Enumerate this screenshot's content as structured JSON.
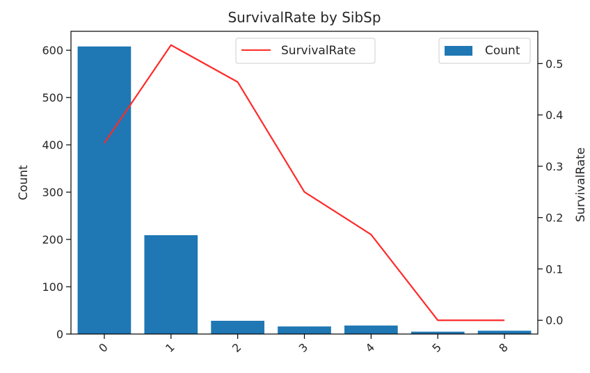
{
  "chart_data": {
    "type": "bar",
    "title": "SurvivalRate by SibSp",
    "xlabel": "",
    "categories": [
      "0",
      "1",
      "2",
      "3",
      "4",
      "5",
      "8"
    ],
    "series": [
      {
        "name": "Count",
        "type": "bar",
        "axis": "left",
        "color": "#1f77b4",
        "values": [
          608,
          209,
          28,
          16,
          18,
          5,
          7
        ]
      },
      {
        "name": "SurvivalRate",
        "type": "line",
        "axis": "right",
        "color": "#ff2a2a",
        "values": [
          0.345,
          0.536,
          0.464,
          0.25,
          0.167,
          0.0,
          0.0
        ]
      }
    ],
    "y_left": {
      "label": "Count",
      "lim": [
        0,
        640
      ],
      "ticks": [
        0,
        100,
        200,
        300,
        400,
        500,
        600
      ],
      "tick_labels": [
        "0",
        "100",
        "200",
        "300",
        "400",
        "500",
        "600"
      ]
    },
    "y_right": {
      "label": "SurvivalRate",
      "lim": [
        -0.0268,
        0.5628
      ],
      "ticks": [
        0.0,
        0.1,
        0.2,
        0.3,
        0.4,
        0.5
      ],
      "tick_labels": [
        "0.0",
        "0.1",
        "0.2",
        "0.3",
        "0.4",
        "0.5"
      ]
    },
    "x_tick_rotation": 45,
    "grid": false,
    "legends": [
      {
        "entry": "SurvivalRate",
        "placement": "top-center"
      },
      {
        "entry": "Count",
        "placement": "top-right"
      }
    ]
  }
}
